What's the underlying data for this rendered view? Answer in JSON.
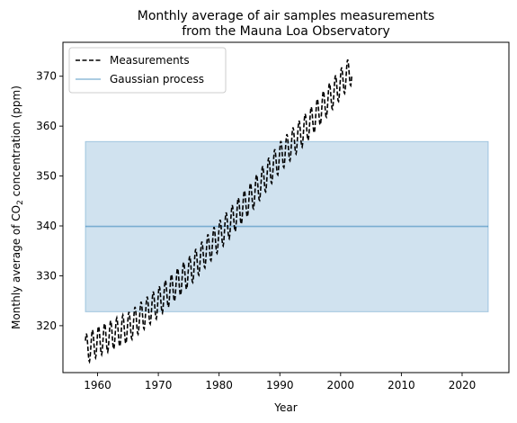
{
  "chart_data": {
    "type": "line",
    "title_line1": "Monthly average of air samples measurements",
    "title_line2": "from the Mauna Loa Observatory",
    "xlabel": "Year",
    "ylabel_prefix": "Monthly average of CO",
    "ylabel_sub": "2",
    "ylabel_suffix": " concentration (ppm)",
    "xlim": [
      1954.3,
      2027.7
    ],
    "ylim": [
      310.6,
      376.8
    ],
    "xticks": [
      1960,
      1970,
      1980,
      1990,
      2000,
      2010,
      2020
    ],
    "yticks": [
      320,
      330,
      340,
      350,
      360,
      370
    ],
    "legend_position": "upper-left",
    "series": [
      {
        "name": "Measurements",
        "style": "dashed",
        "color": "#000000",
        "trend_points": [
          [
            1958.0,
            315.3
          ],
          [
            1960.0,
            316.8
          ],
          [
            1965.0,
            319.6
          ],
          [
            1970.0,
            324.7
          ],
          [
            1975.0,
            330.7
          ],
          [
            1980.0,
            338.0
          ],
          [
            1985.0,
            345.3
          ],
          [
            1990.0,
            353.8
          ],
          [
            1995.0,
            360.6
          ],
          [
            2000.0,
            368.5
          ],
          [
            2001.9,
            371.5
          ]
        ],
        "seasonal_amplitude": 3.0
      },
      {
        "name": "Gaussian process",
        "style": "solid",
        "color": "#1f77b4",
        "x_start": 1958.0,
        "x_end": 2024.3,
        "mean": 339.9,
        "band_lower": 322.8,
        "band_upper": 356.9
      }
    ]
  }
}
